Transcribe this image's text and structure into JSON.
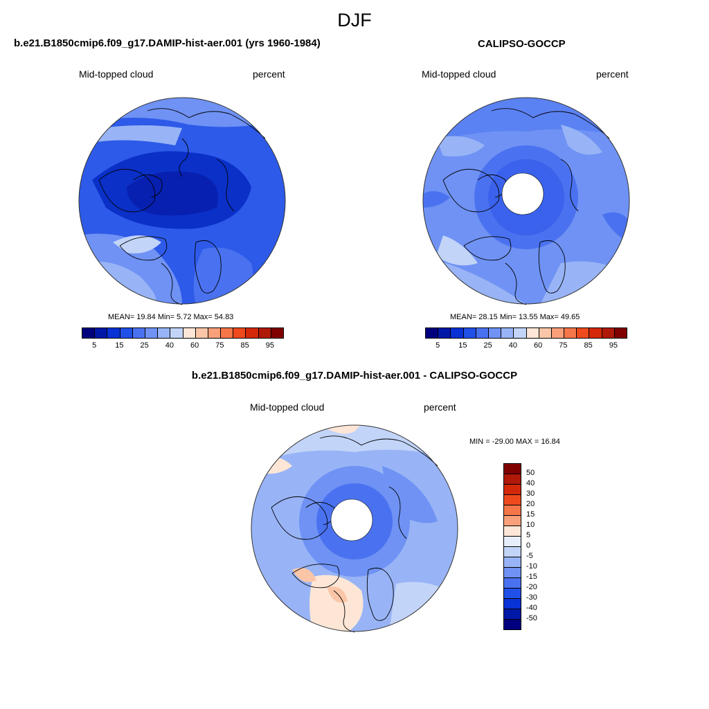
{
  "title": "DJF",
  "panels": [
    {
      "title": "b.e21.B1850cmip6.f09_g17.DAMIP-hist-aer.001 (yrs 1960-1984)",
      "left_label": "Mid-topped cloud",
      "right_label": "percent",
      "stats": "MEAN=  19.84  Min=   5.72  Max=  54.83"
    },
    {
      "title": "CALIPSO-GOCCP",
      "left_label": "Mid-topped cloud",
      "right_label": "percent",
      "stats": "MEAN=  28.15  Min=  13.55  Max=  49.65"
    },
    {
      "title": "b.e21.B1850cmip6.f09_g17.DAMIP-hist-aer.001 - CALIPSO-GOCCP",
      "left_label": "Mid-topped cloud",
      "right_label": "percent",
      "stats": "MIN = -29.00 MAX =  16.84"
    }
  ],
  "abs_colorbar": {
    "colors": [
      "#00007f",
      "#0018a8",
      "#0832d6",
      "#2050e8",
      "#4a72f0",
      "#6f92f4",
      "#98b4f6",
      "#c2d4f8",
      "#fde6d6",
      "#fbc6a8",
      "#f9a07a",
      "#f57648",
      "#ee4a1e",
      "#d4280a",
      "#b01808",
      "#800000"
    ],
    "tick_labels": [
      "5",
      "15",
      "25",
      "40",
      "60",
      "75",
      "85",
      "95"
    ]
  },
  "diff_colorbar": {
    "colors": [
      "#800000",
      "#b01808",
      "#d4280a",
      "#ee4a1e",
      "#f57648",
      "#f9a07a",
      "#fde6d6",
      "#e6eefc",
      "#c2d4f8",
      "#98b4f6",
      "#6f92f4",
      "#4a72f0",
      "#2050e8",
      "#0832d6",
      "#0018a8",
      "#00007f"
    ],
    "tick_labels": [
      "50",
      "40",
      "30",
      "20",
      "15",
      "10",
      "5",
      "0",
      "-5",
      "-10",
      "-15",
      "-20",
      "-30",
      "-40",
      "-50"
    ]
  }
}
